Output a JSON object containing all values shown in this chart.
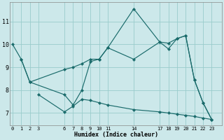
{
  "bg_color": "#cce8ea",
  "grid_color": "#99cccc",
  "line_color": "#1a6b6b",
  "xlabel": "Humidex (Indice chaleur)",
  "series1_x": [
    0,
    1,
    2,
    6,
    7,
    8,
    9,
    10,
    11,
    14,
    17,
    18,
    19,
    20,
    21,
    22,
    23
  ],
  "series1_y": [
    10.0,
    9.35,
    8.35,
    7.8,
    7.35,
    8.0,
    9.25,
    9.35,
    9.85,
    11.55,
    10.1,
    9.8,
    10.25,
    10.38,
    8.45,
    7.45,
    6.72
  ],
  "series2_x": [
    1,
    2,
    6,
    7,
    8,
    9,
    10,
    11,
    14,
    17,
    18,
    19,
    20,
    21,
    22,
    23
  ],
  "series2_y": [
    9.35,
    8.35,
    8.9,
    9.0,
    9.15,
    9.35,
    9.35,
    9.85,
    9.35,
    10.1,
    10.05,
    10.25,
    10.38,
    8.45,
    7.45,
    6.72
  ],
  "series3_x": [
    3,
    6,
    7,
    8,
    9,
    10,
    11,
    14,
    17,
    18,
    19,
    20,
    21,
    22,
    23
  ],
  "series3_y": [
    7.8,
    7.05,
    7.3,
    7.6,
    7.55,
    7.45,
    7.35,
    7.15,
    7.05,
    7.0,
    6.95,
    6.9,
    6.85,
    6.78,
    6.72
  ],
  "xlim": [
    -0.3,
    24.2
  ],
  "ylim": [
    6.45,
    11.85
  ],
  "xticks": [
    0,
    1,
    2,
    3,
    6,
    7,
    8,
    9,
    10,
    11,
    14,
    17,
    18,
    19,
    20,
    21,
    22,
    23
  ],
  "yticks": [
    7,
    8,
    9,
    10,
    11
  ],
  "lw": 0.85,
  "ms": 2.2
}
